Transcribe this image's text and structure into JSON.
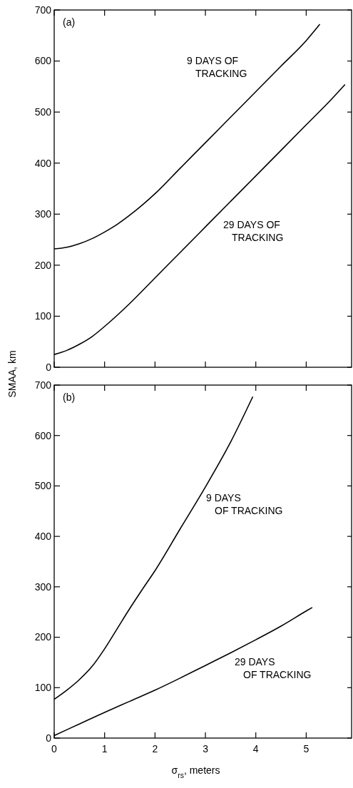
{
  "chart_data": [
    {
      "type": "line",
      "ylabel": "SMAA, km",
      "xlim": [
        0,
        5.9
      ],
      "xticks": [
        0,
        1,
        2,
        3,
        4,
        5
      ],
      "ylim": [
        0,
        700
      ],
      "yticks": [
        0,
        100,
        200,
        300,
        400,
        500,
        600,
        700
      ],
      "tick_labels": "y",
      "grid": false,
      "marker": "none",
      "line_style": "solid",
      "annotations": [
        "(a)",
        "9 DAYS OF\nTRACKING",
        "29 DAYS OF\nTRACKING"
      ],
      "series": [
        {
          "color": "#000000",
          "x": [
            0,
            0.25,
            0.5,
            0.75,
            1,
            1.25,
            1.5,
            1.75,
            2,
            2.5,
            3,
            3.5,
            4,
            4.5,
            5,
            5.27
          ],
          "values": [
            232,
            235,
            242,
            252,
            265,
            280,
            298,
            318,
            340,
            390,
            440,
            490,
            540,
            590,
            640,
            672
          ]
        },
        {
          "color": "#000000",
          "x": [
            0,
            0.25,
            0.5,
            0.75,
            1,
            1.5,
            2,
            2.5,
            3,
            3.5,
            4,
            4.5,
            5,
            5.5,
            5.77
          ],
          "values": [
            25,
            33,
            45,
            60,
            80,
            125,
            175,
            225,
            275,
            325,
            375,
            425,
            475,
            525,
            554
          ]
        }
      ]
    },
    {
      "type": "line",
      "xlabel": "σ$_{rs}$, meters",
      "xlim": [
        0,
        5.9
      ],
      "xticks": [
        0,
        1,
        2,
        3,
        4,
        5
      ],
      "ylim": [
        0,
        700
      ],
      "yticks": [
        0,
        100,
        200,
        300,
        400,
        500,
        600,
        700
      ],
      "grid": false,
      "marker": "none",
      "line_style": "solid",
      "annotations": [
        "(b)",
        "9 DAYS\nOF TRACKING",
        "29 DAYS\nOF TRACKING"
      ],
      "series": [
        {
          "color": "#000000",
          "x": [
            0,
            0.25,
            0.5,
            0.75,
            1,
            1.25,
            1.5,
            1.75,
            2,
            2.5,
            3,
            3.5,
            3.94
          ],
          "values": [
            77,
            95,
            116,
            142,
            177,
            217,
            257,
            295,
            332,
            415,
            498,
            587,
            677
          ]
        },
        {
          "color": "#000000",
          "x": [
            0,
            0.5,
            1,
            1.5,
            2,
            2.5,
            3,
            3.5,
            4,
            4.5,
            5,
            5.12
          ],
          "values": [
            5,
            28,
            51,
            73,
            95,
            119,
            144,
            169,
            195,
            222,
            252,
            259
          ]
        }
      ]
    }
  ]
}
